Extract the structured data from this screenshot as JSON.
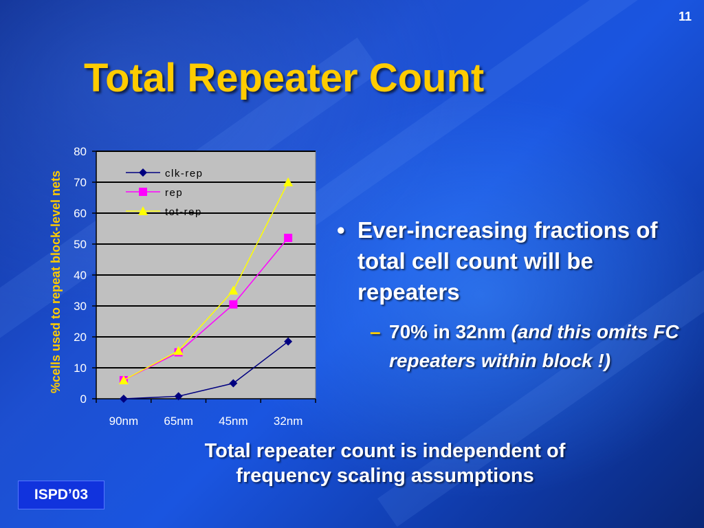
{
  "slide": {
    "number": "11",
    "title": "Total Repeater Count",
    "bullet": "Ever-increasing fractions of total cell count will be repeaters",
    "sub_bullet_normal": "70% in 32nm ",
    "sub_bullet_italic": "(and this omits FC repeaters within block !)",
    "caption_line1": "Total repeater count is independent of",
    "caption_line2": "frequency scaling assumptions",
    "badge": "ISPD’03"
  },
  "colors": {
    "title": "#ffcc00",
    "clk_rep": "#000080",
    "rep": "#ff00ff",
    "tot_rep": "#ffff00",
    "plot_bg": "#c0c0c0"
  },
  "chart_data": {
    "type": "line",
    "categories": [
      "90nm",
      "65nm",
      "45nm",
      "32nm"
    ],
    "series": [
      {
        "name": "clk-rep",
        "values": [
          0,
          0.8,
          5,
          18.5
        ],
        "marker": "diamond"
      },
      {
        "name": "rep",
        "values": [
          6,
          15,
          30.5,
          52
        ],
        "marker": "square"
      },
      {
        "name": "tot-rep",
        "values": [
          6,
          15.5,
          35,
          70
        ],
        "marker": "triangle"
      }
    ],
    "ylabel": "%cells used to repeat block-level nets",
    "xlabel": "",
    "ylim": [
      0,
      80
    ],
    "yticks": [
      0,
      10,
      20,
      30,
      40,
      50,
      60,
      70,
      80
    ],
    "grid": true,
    "legend_position": "top-left"
  }
}
